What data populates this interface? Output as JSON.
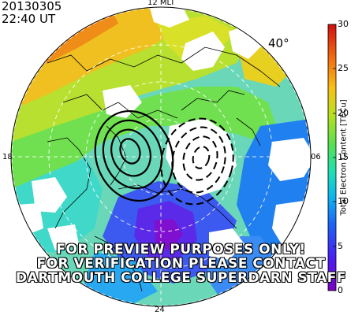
{
  "header": {
    "date": "20130305",
    "time": "22:40 UT"
  },
  "mlt_labels": {
    "top": "12 MLT",
    "left": "18",
    "right": "06",
    "bottom": "24"
  },
  "latitude_label": "40°",
  "watermark": [
    "FOR PREVIEW PURPOSES ONLY!",
    "FOR VERIFICATION PLEASE CONTACT",
    "DARTMOUTH COLLEGE SUPERDARN STAFF"
  ],
  "colorbar": {
    "title": "Total Electron Content [TECu]",
    "ticks": [
      "30",
      "25",
      "20",
      "15",
      "10",
      "5",
      "0"
    ],
    "min": 0,
    "max": 30,
    "colors": [
      "#7a00c0",
      "#5020f0",
      "#1e5ef5",
      "#10b0f0",
      "#20e0b0",
      "#60e050",
      "#c8e020",
      "#f8b818",
      "#f06010",
      "#d01010"
    ]
  }
}
